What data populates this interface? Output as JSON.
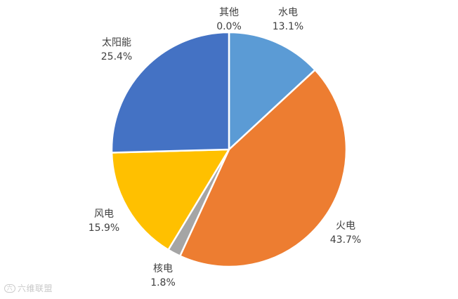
{
  "chart_data": {
    "type": "pie",
    "title": "",
    "start_angle_deg": 0,
    "direction": "clockwise",
    "slices": [
      {
        "label": "水电",
        "value": 13.1,
        "value_text": "13.1%",
        "color": "#5B9BD5"
      },
      {
        "label": "火电",
        "value": 43.7,
        "value_text": "43.7%",
        "color": "#ED7D31"
      },
      {
        "label": "核电",
        "value": 1.8,
        "value_text": "1.8%",
        "color": "#A5A5A5"
      },
      {
        "label": "风电",
        "value": 15.9,
        "value_text": "15.9%",
        "color": "#FFC000"
      },
      {
        "label": "太阳能",
        "value": 25.4,
        "value_text": "25.4%",
        "color": "#4472C4"
      },
      {
        "label": "其他",
        "value": 0.0,
        "value_text": "0.0%",
        "color": "#70AD47"
      }
    ],
    "legend": "none",
    "data_labels": "outside"
  },
  "watermark": {
    "logo_text": "六",
    "text": "六维联盟"
  }
}
